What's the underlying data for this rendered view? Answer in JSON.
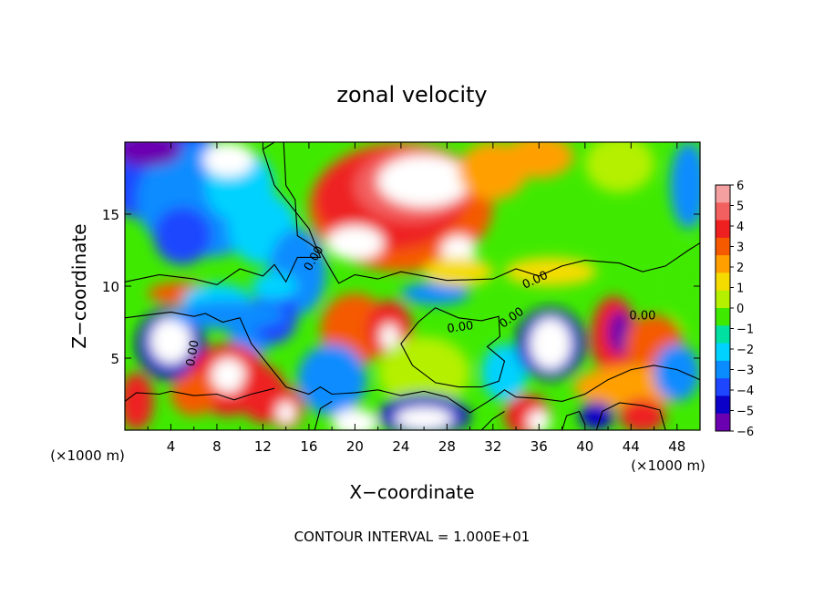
{
  "chart_data": {
    "type": "heatmap",
    "title": "zonal velocity",
    "xlabel": "X−coordinate",
    "ylabel": "Z−coordinate",
    "x_unit_left": "(×1000 m)",
    "x_unit_right": "(×1000 m)",
    "footer": "CONTOUR INTERVAL = 1.000E+01",
    "xlim": [
      0,
      50
    ],
    "ylim": [
      0,
      20
    ],
    "x_ticks": [
      4,
      8,
      12,
      16,
      20,
      24,
      28,
      32,
      36,
      40,
      44,
      48
    ],
    "y_ticks": [
      5,
      10,
      15
    ],
    "colorbar": {
      "range": [
        -6,
        6
      ],
      "tick_labels": [
        "6",
        "5",
        "4",
        "3",
        "2",
        "1",
        "0",
        "−1",
        "−2",
        "−3",
        "−4",
        "−5",
        "−6"
      ],
      "colors": [
        "#f4a0a0",
        "#f36060",
        "#ee2020",
        "#f55a00",
        "#ffa000",
        "#f5dc00",
        "#b4f000",
        "#40ea00",
        "#00e0a0",
        "#00d2ff",
        "#0a8cff",
        "#1e46ff",
        "#0a00c8",
        "#6a00b0"
      ]
    },
    "contour_labels": [
      "0.00",
      "0.00",
      "0.00",
      "0.00",
      "0.00",
      "0.00"
    ],
    "grid": false
  }
}
